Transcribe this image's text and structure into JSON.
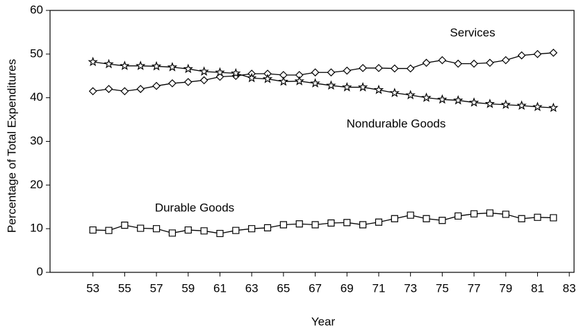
{
  "chart_data": {
    "type": "line",
    "xlabel": "Year",
    "ylabel": "Percentage of Total Expenditures",
    "annotations": [
      "Services",
      "Nondurable Goods",
      "Durable Goods"
    ],
    "x": [
      53,
      54,
      55,
      56,
      57,
      58,
      59,
      60,
      61,
      62,
      63,
      64,
      65,
      66,
      67,
      68,
      69,
      70,
      71,
      72,
      73,
      74,
      75,
      76,
      77,
      78,
      79,
      80,
      81,
      82
    ],
    "series": [
      {
        "name": "Services",
        "color": "#000000",
        "marker": "diamond",
        "values": [
          41.5,
          42,
          41.5,
          42,
          42.7,
          43.3,
          43.6,
          44,
          44.8,
          45,
          45.5,
          45.5,
          45.2,
          45.2,
          45.8,
          45.8,
          46.2,
          46.8,
          46.8,
          46.7,
          46.7,
          48,
          48.6,
          47.8,
          47.8,
          48,
          48.6,
          49.7,
          50,
          50.3
        ]
      },
      {
        "name": "Nondurable Goods",
        "color": "#000000",
        "marker": "star",
        "values": [
          48.2,
          47.7,
          47.3,
          47.3,
          47.2,
          47,
          46.6,
          46,
          45.8,
          45.6,
          44.5,
          44.3,
          43.7,
          43.8,
          43.3,
          42.8,
          42.4,
          42.4,
          41.8,
          41.1,
          40.6,
          40,
          39.6,
          39.4,
          38.9,
          38.6,
          38.4,
          38.2,
          37.9,
          37.7
        ]
      },
      {
        "name": "Durable Goods",
        "color": "#000000",
        "marker": "square",
        "values": [
          9.7,
          9.6,
          10.8,
          10.1,
          10,
          9,
          9.7,
          9.5,
          8.9,
          9.6,
          10,
          10.2,
          10.9,
          11.1,
          10.9,
          11.3,
          11.4,
          10.9,
          11.5,
          12.3,
          13.1,
          12.3,
          11.9,
          12.9,
          13.4,
          13.6,
          13.3,
          12.3,
          12.6,
          12.5
        ]
      }
    ],
    "xlim": [
      50.3,
      83.3
    ],
    "xticks": [
      53,
      55,
      57,
      59,
      61,
      63,
      65,
      67,
      69,
      71,
      73,
      75,
      77,
      79,
      81,
      83
    ],
    "ylim": [
      0,
      60
    ],
    "yticks": [
      0,
      10,
      20,
      30,
      40,
      50,
      60
    ],
    "grid": false
  }
}
